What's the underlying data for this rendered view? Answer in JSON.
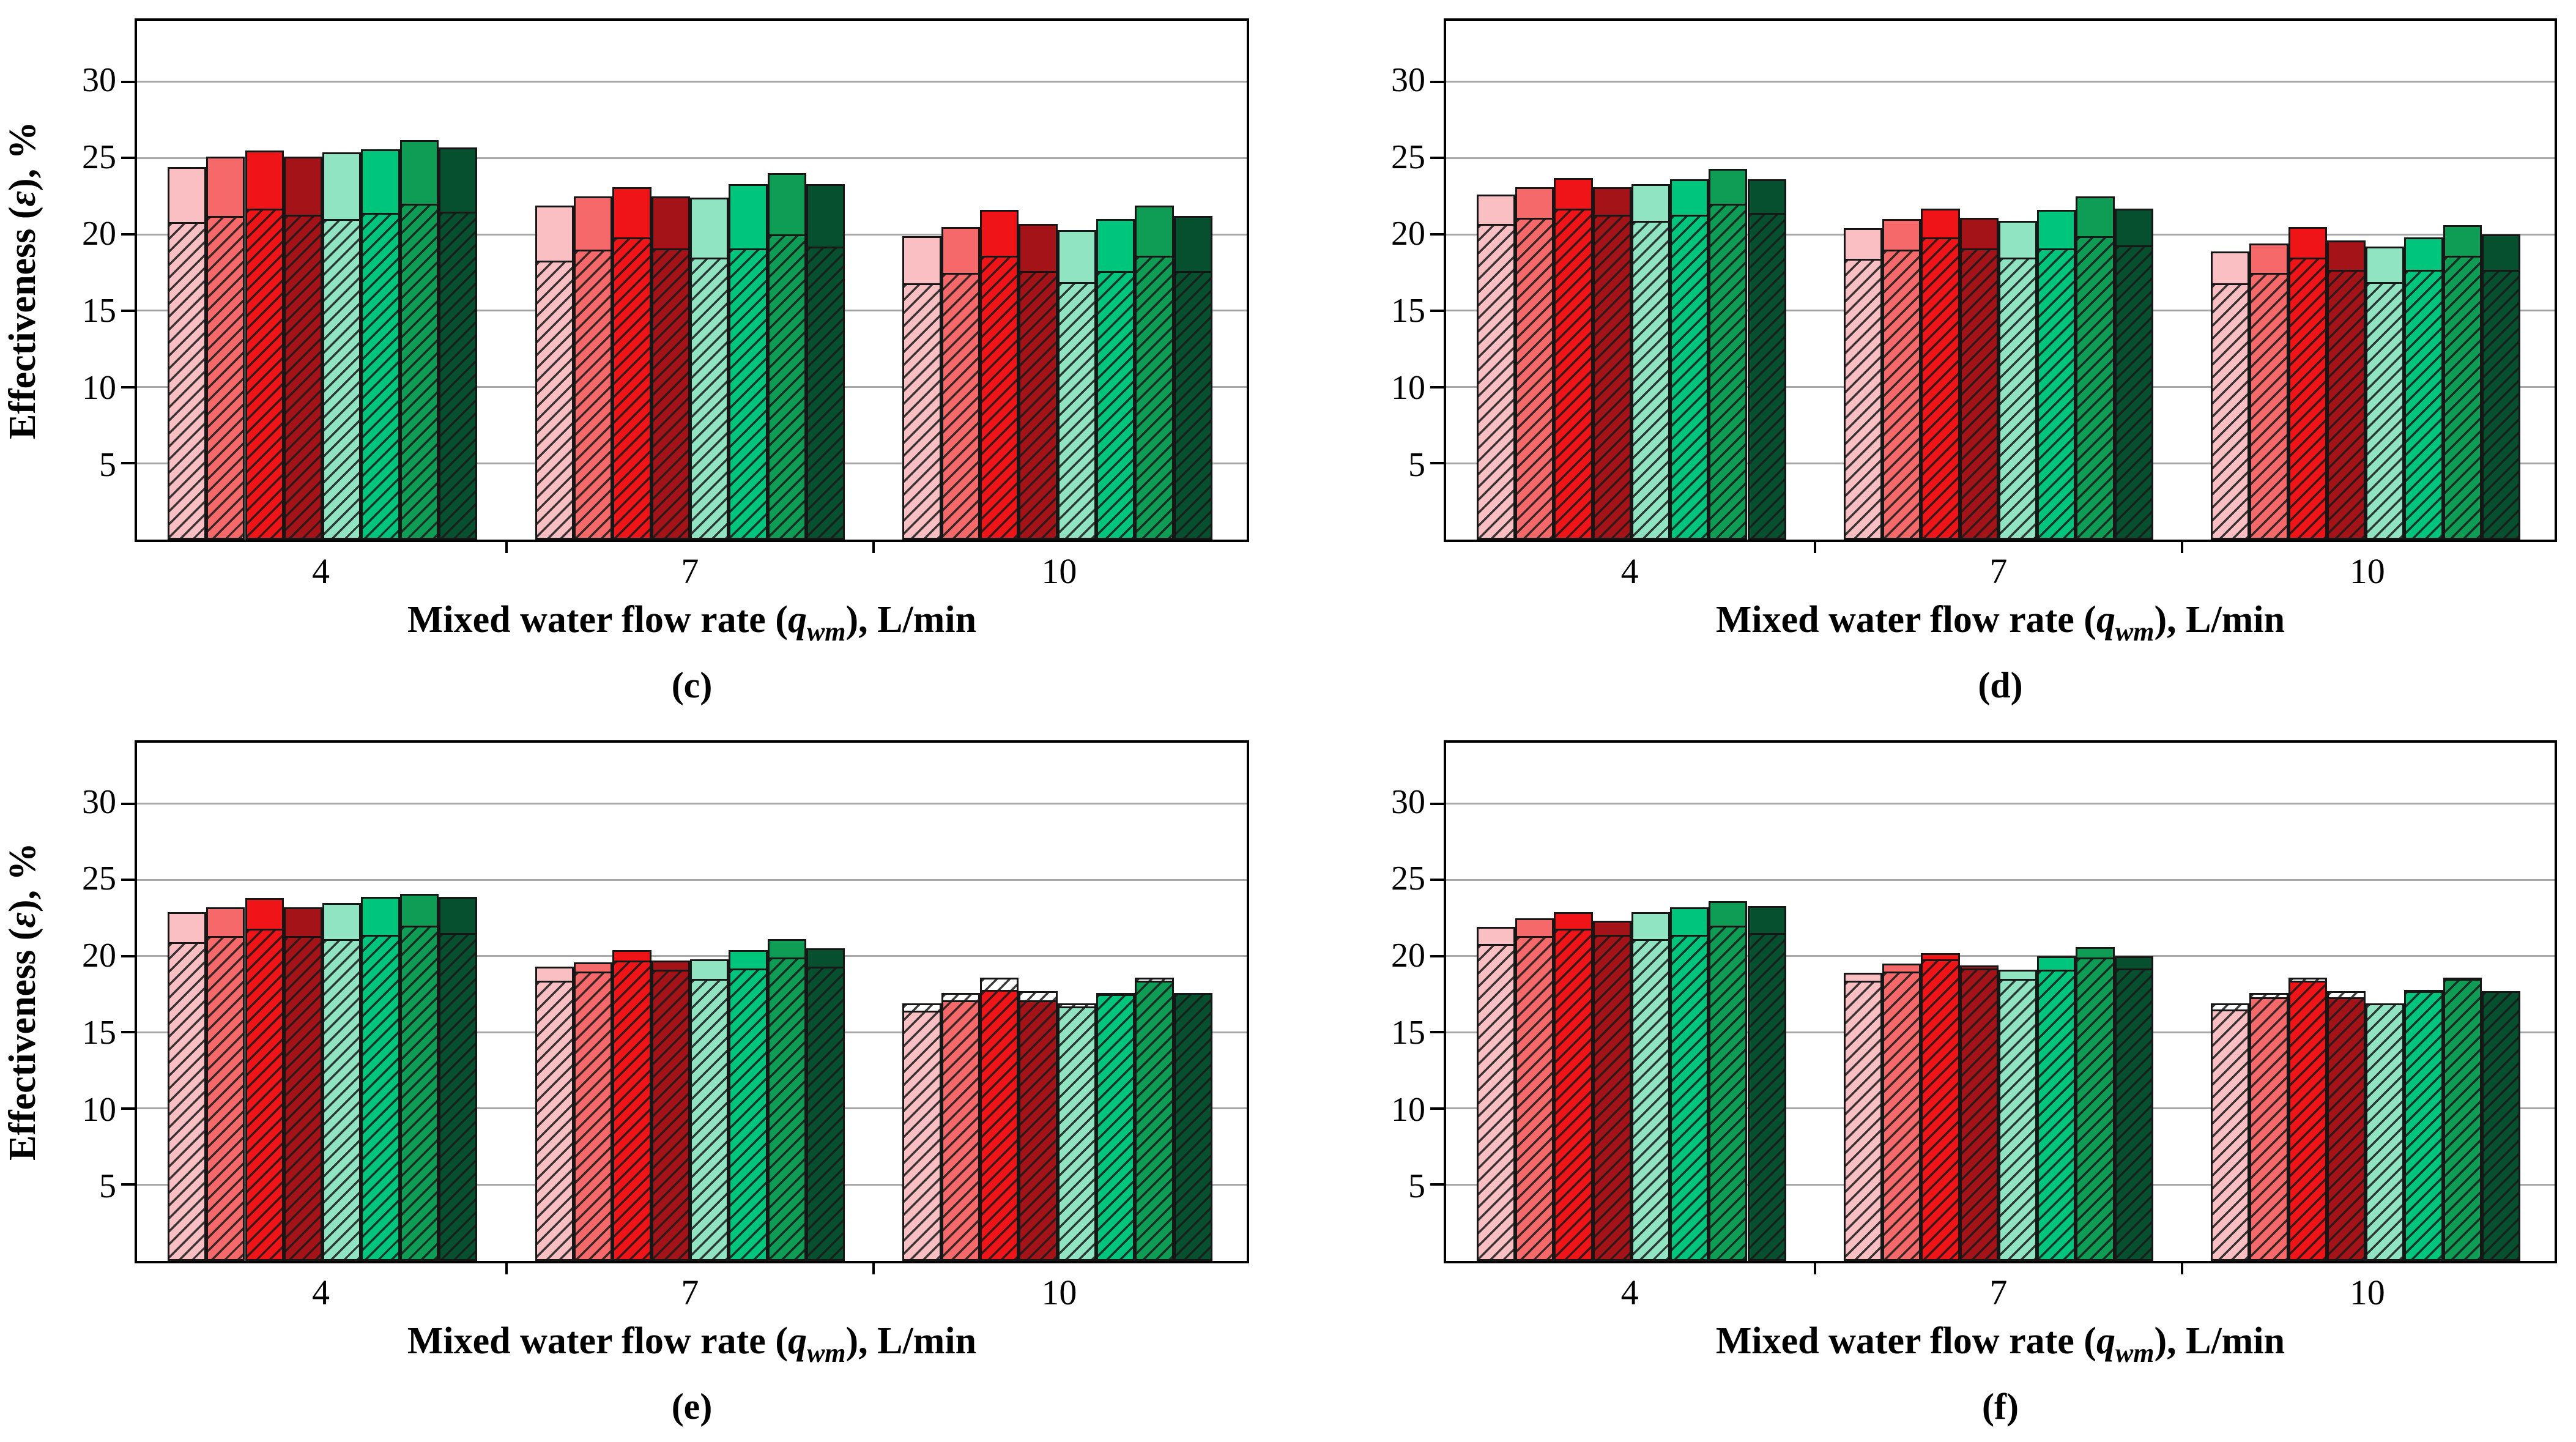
{
  "figure": {
    "background": "#FFFFFF",
    "description_visible_text_only": true
  },
  "style": {
    "grid_color": "#A8A8A8",
    "bar_edge_color": "#161616",
    "axis_color": "#000000",
    "hatch_pattern": "diagonal-forward-slash",
    "series": [
      {
        "name": "light-pink",
        "color": "#F9BFC3"
      },
      {
        "name": "salmon-red",
        "color": "#F6696B"
      },
      {
        "name": "bright-red",
        "color": "#EE1418"
      },
      {
        "name": "dark-red",
        "color": "#A31318"
      },
      {
        "name": "light-mint-green",
        "color": "#90E4C1"
      },
      {
        "name": "spring-green",
        "color": "#00C57D"
      },
      {
        "name": "green",
        "color": "#0F9C55"
      },
      {
        "name": "dark-green",
        "color": "#07502F"
      }
    ]
  },
  "labels": {
    "ylabel_prefix": "Effectiveness (",
    "ylabel_symbol": "ε",
    "ylabel_suffix": "), %",
    "xlabel_prefix": "Mixed water flow rate (",
    "xlabel_qsymbol": "q",
    "xlabel_subscript": "wm",
    "xlabel_suffix": "), L/min"
  },
  "chart_data": [
    {
      "id": "c",
      "caption": "(c)",
      "type": "bar",
      "ylabel": "Effectiveness (ε), %",
      "xlabel": "Mixed water flow rate (qwm), L/min",
      "show_ylabel": true,
      "ylim": [
        0,
        34
      ],
      "yticks": [
        5,
        10,
        15,
        20,
        25,
        30
      ],
      "grid": true,
      "categories": [
        "4",
        "7",
        "10"
      ],
      "bar_style_note": "each color has a taller solid bar behind and a hatched transparent overlay bar in front",
      "groups": [
        {
          "label": "4",
          "solid": [
            24.4,
            25.1,
            25.5,
            25.1,
            25.4,
            25.6,
            26.2,
            25.7
          ],
          "hatched": [
            20.8,
            21.2,
            21.7,
            21.3,
            21.0,
            21.4,
            22.0,
            21.5
          ]
        },
        {
          "label": "7",
          "solid": [
            21.9,
            22.5,
            23.1,
            22.5,
            22.4,
            23.3,
            24.0,
            23.3
          ],
          "hatched": [
            18.3,
            19.0,
            19.8,
            19.1,
            18.5,
            19.1,
            20.0,
            19.2
          ]
        },
        {
          "label": "10",
          "solid": [
            19.9,
            20.5,
            21.6,
            20.7,
            20.3,
            21.0,
            21.9,
            21.2
          ],
          "hatched": [
            16.8,
            17.5,
            18.6,
            17.6,
            16.9,
            17.6,
            18.6,
            17.6
          ]
        }
      ]
    },
    {
      "id": "d",
      "caption": "(d)",
      "type": "bar",
      "ylabel": "",
      "xlabel": "Mixed water flow rate (qwm), L/min",
      "show_ylabel": false,
      "ylim": [
        0,
        34
      ],
      "yticks": [
        5,
        10,
        15,
        20,
        25,
        30
      ],
      "grid": true,
      "categories": [
        "4",
        "7",
        "10"
      ],
      "groups": [
        {
          "label": "4",
          "solid": [
            22.6,
            23.1,
            23.7,
            23.1,
            23.3,
            23.6,
            24.3,
            23.6
          ],
          "hatched": [
            20.7,
            21.1,
            21.7,
            21.3,
            20.9,
            21.3,
            22.0,
            21.4
          ]
        },
        {
          "label": "7",
          "solid": [
            20.4,
            21.0,
            21.7,
            21.1,
            20.9,
            21.6,
            22.5,
            21.7
          ],
          "hatched": [
            18.4,
            19.0,
            19.8,
            19.1,
            18.5,
            19.1,
            19.9,
            19.3
          ]
        },
        {
          "label": "10",
          "solid": [
            18.9,
            19.4,
            20.5,
            19.6,
            19.2,
            19.8,
            20.6,
            20.0
          ],
          "hatched": [
            16.8,
            17.5,
            18.5,
            17.7,
            16.9,
            17.7,
            18.6,
            17.7
          ]
        }
      ]
    },
    {
      "id": "e",
      "caption": "(e)",
      "type": "bar",
      "ylabel": "Effectiveness (ε), %",
      "xlabel": "Mixed water flow rate (qwm), L/min",
      "show_ylabel": true,
      "ylim": [
        0,
        34
      ],
      "yticks": [
        5,
        10,
        15,
        20,
        25,
        30
      ],
      "grid": true,
      "categories": [
        "4",
        "7",
        "10"
      ],
      "groups": [
        {
          "label": "4",
          "solid": [
            22.9,
            23.2,
            23.8,
            23.2,
            23.5,
            23.9,
            24.1,
            23.9
          ],
          "hatched": [
            20.9,
            21.3,
            21.8,
            21.3,
            21.1,
            21.4,
            22.0,
            21.5
          ]
        },
        {
          "label": "7",
          "solid": [
            19.3,
            19.6,
            20.4,
            19.7,
            19.8,
            20.4,
            21.1,
            20.5
          ],
          "hatched": [
            18.4,
            19.0,
            19.7,
            19.1,
            18.5,
            19.2,
            19.9,
            19.3
          ]
        },
        {
          "label": "10",
          "solid": [
            16.4,
            17.1,
            17.8,
            17.1,
            16.7,
            17.5,
            18.4,
            17.6
          ],
          "hatched": [
            16.9,
            17.6,
            18.6,
            17.7,
            16.9,
            17.6,
            18.6,
            17.6
          ]
        }
      ]
    },
    {
      "id": "f",
      "caption": "(f)",
      "type": "bar",
      "ylabel": "",
      "xlabel": "Mixed water flow rate (qwm), L/min",
      "show_ylabel": false,
      "ylim": [
        0,
        34
      ],
      "yticks": [
        5,
        10,
        15,
        20,
        25,
        30
      ],
      "grid": true,
      "categories": [
        "4",
        "7",
        "10"
      ],
      "groups": [
        {
          "label": "4",
          "solid": [
            21.9,
            22.5,
            22.9,
            22.3,
            22.9,
            23.2,
            23.6,
            23.3
          ],
          "hatched": [
            20.8,
            21.3,
            21.8,
            21.4,
            21.1,
            21.4,
            22.0,
            21.5
          ]
        },
        {
          "label": "7",
          "solid": [
            18.9,
            19.5,
            20.2,
            19.4,
            19.1,
            20.0,
            20.6,
            20.0
          ],
          "hatched": [
            18.4,
            19.0,
            19.8,
            19.2,
            18.5,
            19.1,
            19.9,
            19.2
          ]
        },
        {
          "label": "10",
          "solid": [
            16.5,
            17.3,
            18.4,
            17.3,
            16.9,
            17.7,
            18.5,
            17.7
          ],
          "hatched": [
            16.9,
            17.6,
            18.6,
            17.7,
            16.9,
            17.8,
            18.6,
            17.7
          ]
        }
      ]
    }
  ]
}
